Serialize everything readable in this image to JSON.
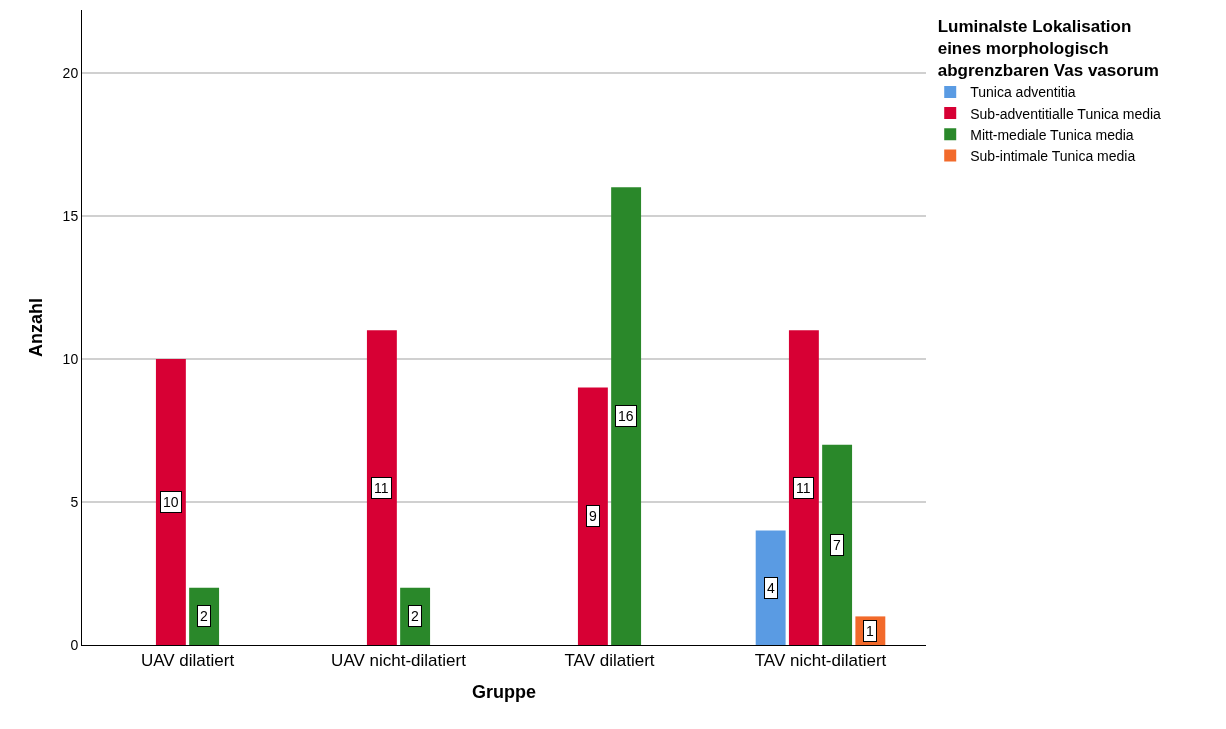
{
  "chart_data": {
    "type": "bar",
    "xlabel": "Gruppe",
    "ylabel": "Anzahl",
    "legend_title": "Luminalste Lokalisation eines morphologisch abgrenzbaren Vas vasorum",
    "categories": [
      "UAV dilatiert",
      "UAV nicht-dilatiert",
      "TAV dilatiert",
      "TAV nicht-dilatiert"
    ],
    "series": [
      {
        "name": "Tunica adventitia",
        "color": "#5a9be3",
        "values": [
          null,
          null,
          null,
          4
        ]
      },
      {
        "name": "Sub-adventitialle Tunica media",
        "color": "#d70034",
        "values": [
          10,
          11,
          9,
          11
        ]
      },
      {
        "name": "Mitt-mediale Tunica media",
        "color": "#2a882a",
        "values": [
          2,
          2,
          16,
          7
        ]
      },
      {
        "name": "Sub-intimale Tunica media",
        "color": "#f26a2b",
        "values": [
          null,
          null,
          null,
          1
        ]
      }
    ],
    "ylim": [
      0,
      22.2
    ],
    "yticks": [
      0,
      5,
      10,
      15,
      20
    ],
    "grid": "y",
    "legend": "top right",
    "data_labels": true
  }
}
